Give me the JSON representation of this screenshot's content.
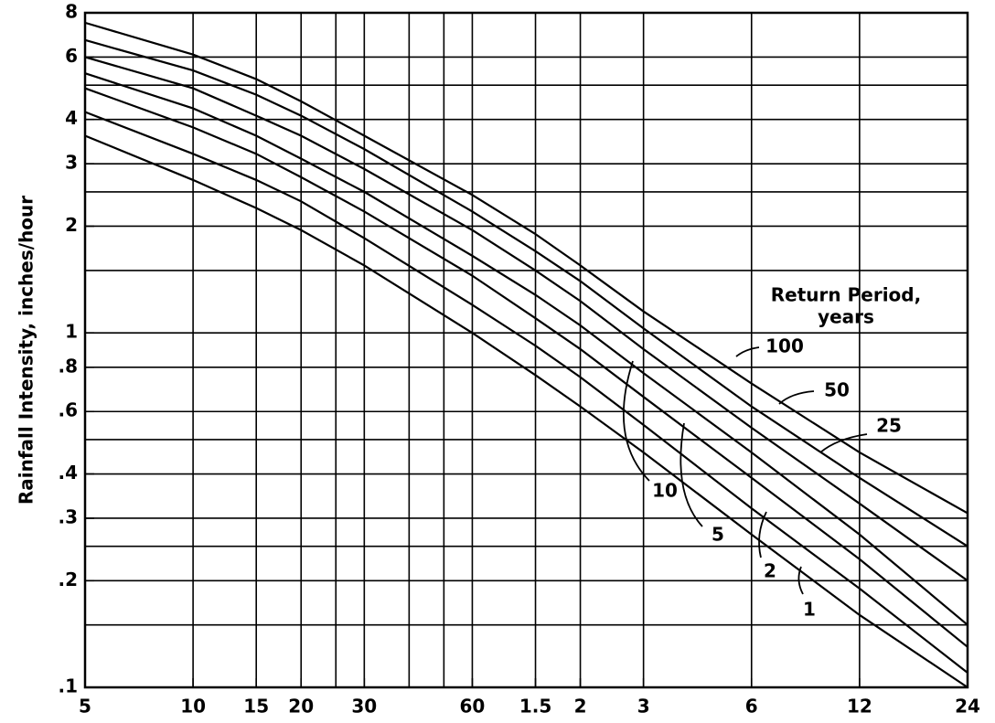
{
  "chart_data": {
    "type": "line",
    "ylabel": "Rainfall Intensity,  inches/hour",
    "legend_title": [
      "Return Period,",
      "years"
    ],
    "xscale": "log",
    "yscale": "log",
    "grid": true,
    "x": [
      5,
      10,
      15,
      20,
      30,
      60,
      90,
      120,
      180,
      360,
      720,
      1440
    ],
    "xlim": [
      5,
      1440
    ],
    "xticks": [
      5,
      10,
      15,
      20,
      30,
      60,
      {
        "value": 90,
        "label": "1.5"
      },
      {
        "value": 120,
        "label": "2"
      },
      {
        "value": 180,
        "label": "3"
      },
      {
        "value": 360,
        "label": "6"
      },
      {
        "value": 720,
        "label": "12"
      },
      {
        "value": 1440,
        "label": "24"
      }
    ],
    "xgrid": [
      10,
      15,
      20,
      25,
      30,
      40,
      50,
      60,
      90,
      120,
      180,
      360,
      720
    ],
    "ylim": [
      0.1,
      8
    ],
    "yticks": [
      {
        "value": 0.1,
        "label": ".1"
      },
      {
        "value": 0.2,
        "label": ".2"
      },
      {
        "value": 0.3,
        "label": ".3"
      },
      {
        "value": 0.4,
        "label": ".4"
      },
      {
        "value": 0.6,
        "label": ".6"
      },
      {
        "value": 0.8,
        "label": ".8"
      },
      1,
      2,
      3,
      4,
      6,
      8
    ],
    "ygrid": [
      0.15,
      0.2,
      0.25,
      0.3,
      0.4,
      0.5,
      0.6,
      0.8,
      1,
      1.5,
      2,
      2.5,
      3,
      4,
      5,
      6,
      8
    ],
    "series": [
      {
        "name": "1",
        "color": "#000000",
        "values": [
          3.6,
          2.7,
          2.25,
          1.95,
          1.55,
          1.0,
          0.76,
          0.62,
          0.46,
          0.27,
          0.16,
          0.1
        ]
      },
      {
        "name": "2",
        "color": "#000000",
        "values": [
          4.2,
          3.2,
          2.7,
          2.35,
          1.85,
          1.2,
          0.92,
          0.75,
          0.55,
          0.32,
          0.19,
          0.11
        ]
      },
      {
        "name": "5",
        "color": "#000000",
        "values": [
          4.9,
          3.8,
          3.2,
          2.75,
          2.2,
          1.45,
          1.1,
          0.9,
          0.66,
          0.39,
          0.23,
          0.13
        ]
      },
      {
        "name": "10",
        "color": "#000000",
        "values": [
          5.4,
          4.3,
          3.6,
          3.1,
          2.5,
          1.65,
          1.28,
          1.05,
          0.77,
          0.46,
          0.27,
          0.15
        ]
      },
      {
        "name": "25",
        "color": "#000000",
        "values": [
          6.0,
          4.9,
          4.1,
          3.6,
          2.9,
          1.95,
          1.5,
          1.23,
          0.9,
          0.54,
          0.33,
          0.2
        ]
      },
      {
        "name": "50",
        "color": "#000000",
        "values": [
          6.7,
          5.5,
          4.7,
          4.1,
          3.3,
          2.2,
          1.7,
          1.4,
          1.03,
          0.62,
          0.39,
          0.25
        ]
      },
      {
        "name": "100",
        "color": "#000000",
        "values": [
          7.5,
          6.1,
          5.2,
          4.5,
          3.6,
          2.45,
          1.9,
          1.55,
          1.15,
          0.72,
          0.46,
          0.31
        ]
      }
    ]
  }
}
